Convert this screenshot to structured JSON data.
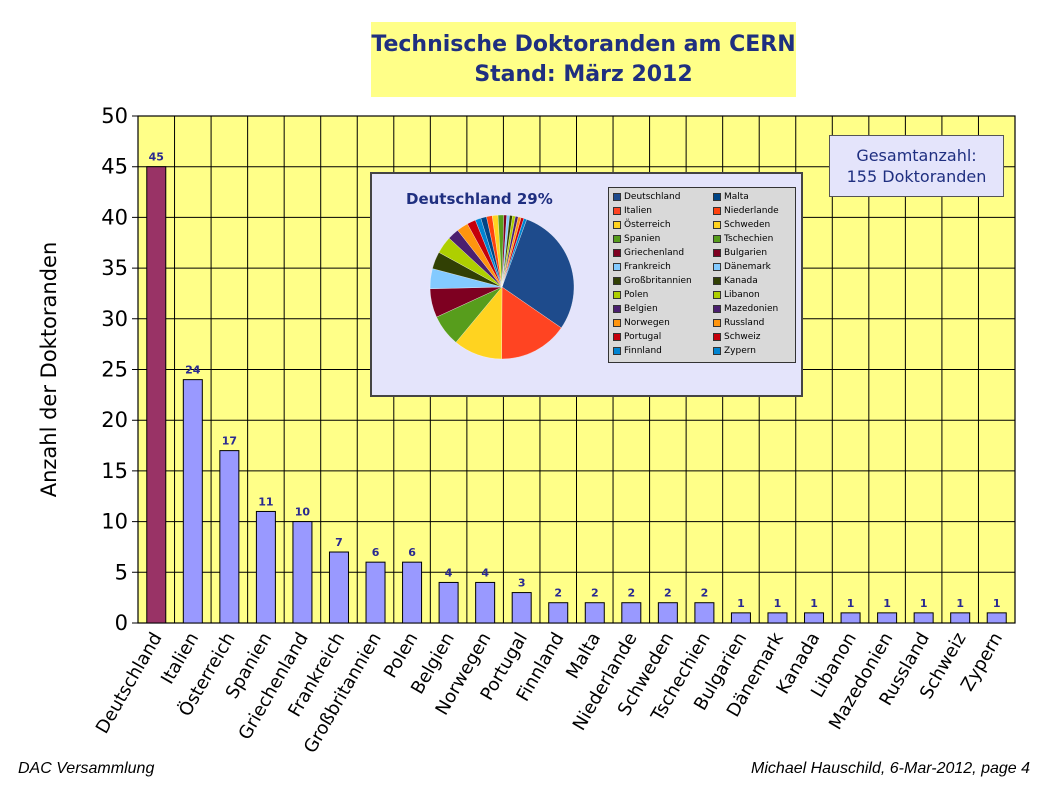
{
  "title": {
    "line1": "Technische Doktoranden am CERN",
    "line2": "Stand: März 2012"
  },
  "chart_data": {
    "type": "bar",
    "ylabel": "Anzahl der Doktoranden",
    "ylim": [
      0,
      50
    ],
    "yticks": [
      0,
      5,
      10,
      15,
      20,
      25,
      30,
      35,
      40,
      45,
      50
    ],
    "grid": true,
    "categories": [
      "Deutschland",
      "Italien",
      "Österreich",
      "Spanien",
      "Griechenland",
      "Frankreich",
      "Großbritannien",
      "Polen",
      "Belgien",
      "Norwegen",
      "Portugal",
      "Finnland",
      "Malta",
      "Niederlande",
      "Schweden",
      "Tschechien",
      "Bulgarien",
      "Dänemark",
      "Kanada",
      "Libanon",
      "Mazedonien",
      "Russland",
      "Schweiz",
      "Zypern"
    ],
    "values": [
      45,
      24,
      17,
      11,
      10,
      7,
      6,
      6,
      4,
      4,
      3,
      2,
      2,
      2,
      2,
      2,
      1,
      1,
      1,
      1,
      1,
      1,
      1,
      1
    ],
    "colors": {
      "plot_background": "#ffff88",
      "bar": "#9999ff",
      "highlight_bar": "#993366",
      "data_label": "#2a2a90"
    }
  },
  "total_box": {
    "line1": "Gesamtanzahl:",
    "line2": "155 Doktoranden"
  },
  "inset": {
    "title": "Deutschland 29%",
    "pie": {
      "type": "pie",
      "labels": [
        "Deutschland",
        "Italien",
        "Österreich",
        "Spanien",
        "Griechenland",
        "Frankreich",
        "Großbritannien",
        "Polen",
        "Belgien",
        "Norwegen",
        "Portugal",
        "Finnland",
        "Malta",
        "Niederlande",
        "Schweden",
        "Tschechien",
        "Bulgarien",
        "Dänemark",
        "Kanada",
        "Libanon",
        "Mazedonien",
        "Russland",
        "Schweiz",
        "Zypern"
      ],
      "values": [
        45,
        24,
        17,
        11,
        10,
        7,
        6,
        6,
        4,
        4,
        3,
        2,
        2,
        2,
        2,
        2,
        1,
        1,
        1,
        1,
        1,
        1,
        1,
        1
      ],
      "colors": [
        "#1e4b8c",
        "#ff4422",
        "#ffd320",
        "#579d1c",
        "#7e0021",
        "#83caff",
        "#314004",
        "#aecf00",
        "#4b1f6f",
        "#ff950e",
        "#c5000b",
        "#0084d1",
        "#004586",
        "#ff420e",
        "#ffd320",
        "#579d1c",
        "#7e0021",
        "#83caff",
        "#314004",
        "#aecf00",
        "#4b1f6f",
        "#ff950e",
        "#c5000b",
        "#0084d1"
      ]
    }
  },
  "footer": {
    "left": "DAC Versammlung",
    "right": "Michael Hauschild, 6-Mar-2012, page 4"
  }
}
